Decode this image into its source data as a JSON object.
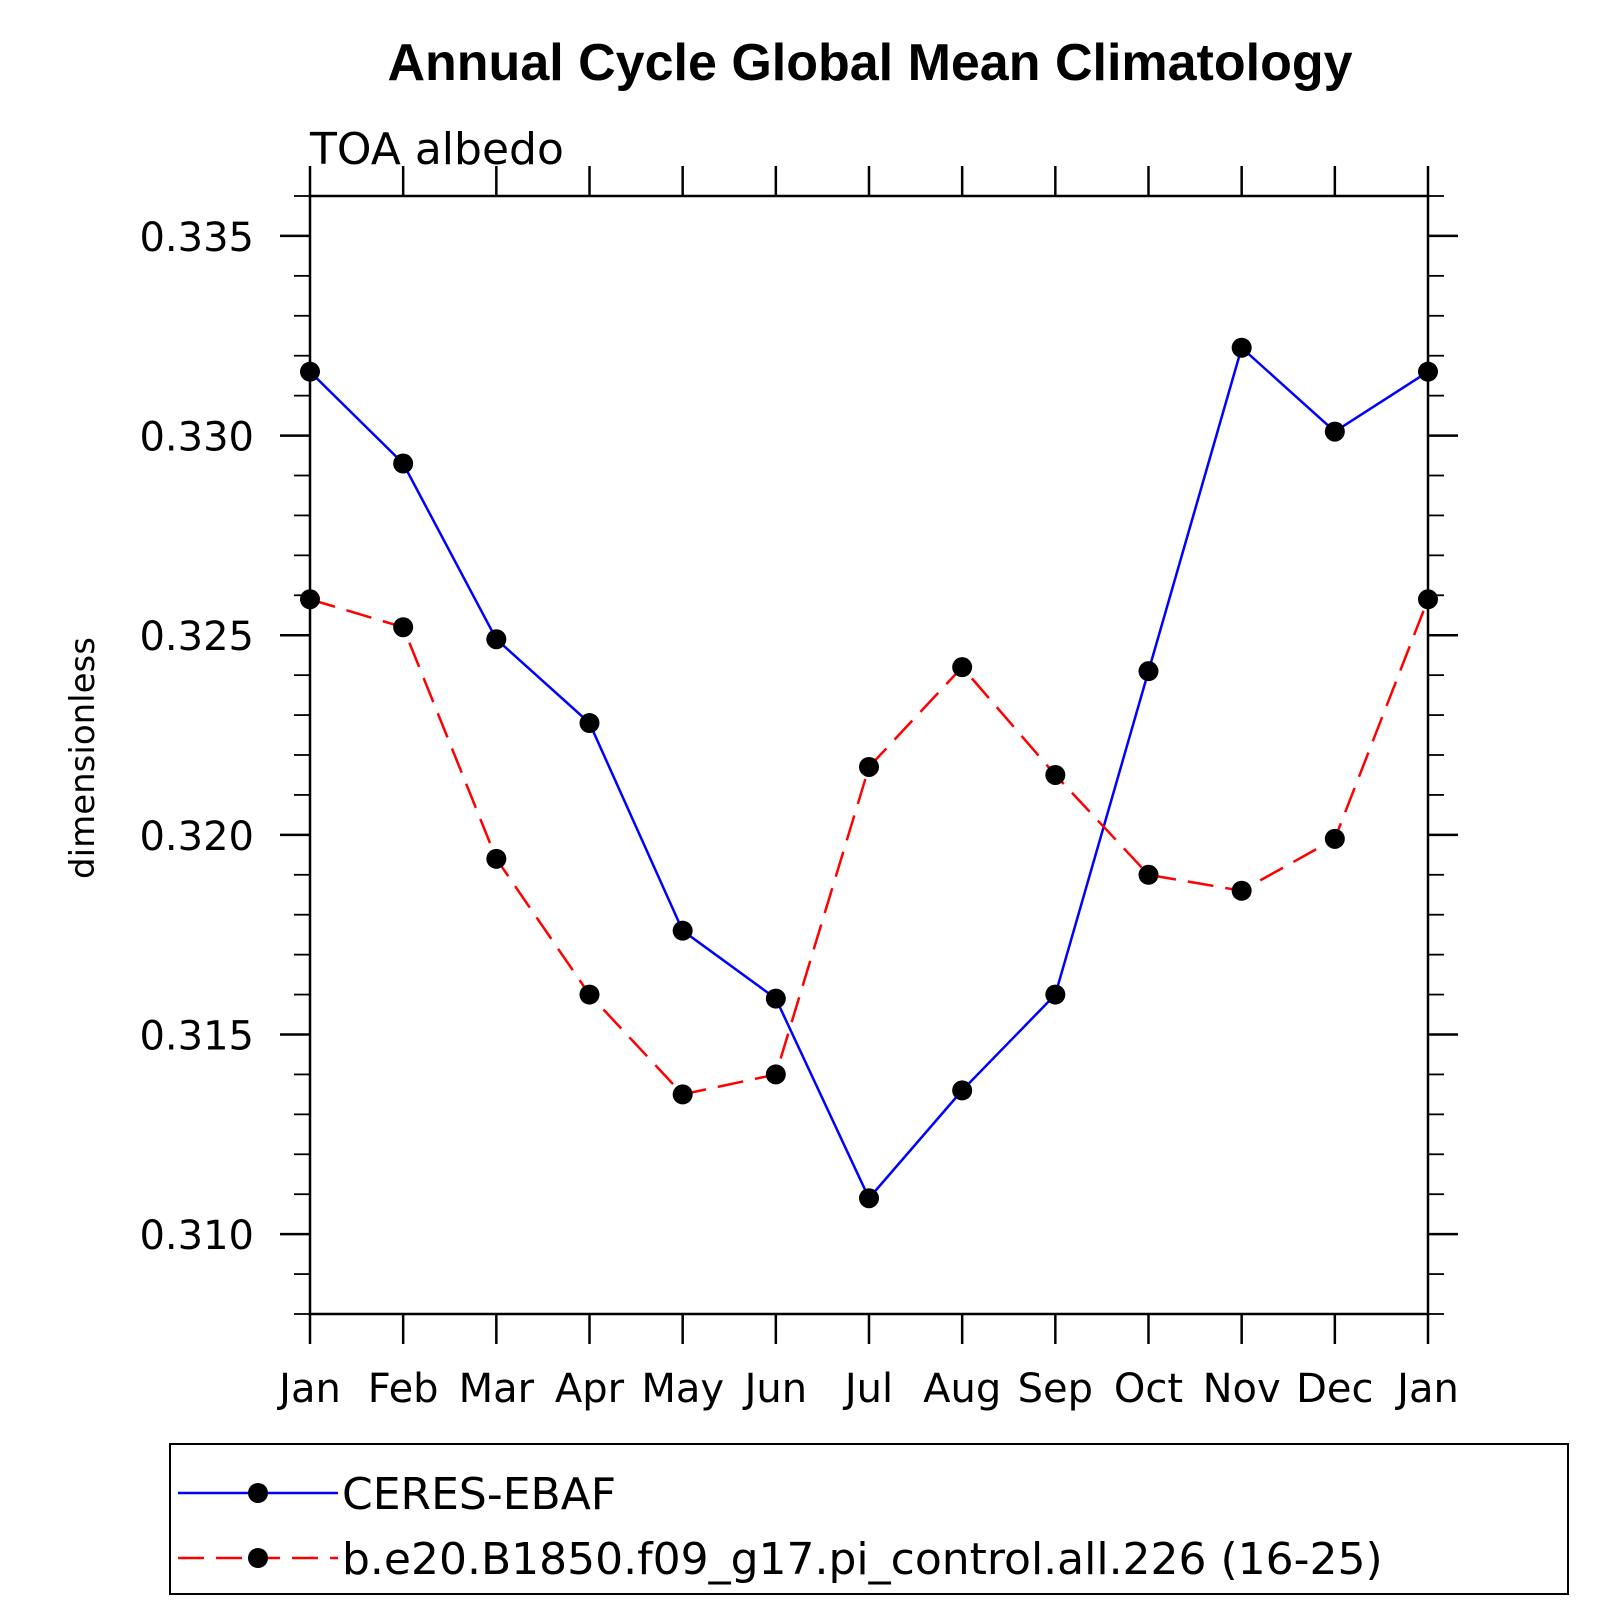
{
  "chart_data": {
    "type": "line",
    "title": "Annual Cycle Global Mean Climatology",
    "subtitle": "TOA albedo",
    "ylabel": "dimensionless",
    "xlabel": "",
    "categories": [
      "Jan",
      "Feb",
      "Mar",
      "Apr",
      "May",
      "Jun",
      "Jul",
      "Aug",
      "Sep",
      "Oct",
      "Nov",
      "Dec",
      "Jan"
    ],
    "ylim": [
      0.308,
      0.336
    ],
    "yticks": [
      0.31,
      0.315,
      0.32,
      0.325,
      0.33,
      0.335
    ],
    "ytick_labels": [
      "0.310",
      "0.315",
      "0.320",
      "0.325",
      "0.330",
      "0.335"
    ],
    "series": [
      {
        "name": "CERES-EBAF",
        "color": "#0000ff",
        "dash": "solid",
        "values": [
          0.3316,
          0.3293,
          0.3249,
          0.3228,
          0.3176,
          0.3159,
          0.3109,
          0.3136,
          0.316,
          0.3241,
          0.3322,
          0.3301,
          0.3316
        ]
      },
      {
        "name": "b.e20.B1850.f09_g17.pi_control.all.226 (16-25)",
        "color": "#ff0000",
        "dash": "dashed",
        "values": [
          0.3259,
          0.3252,
          0.3194,
          0.316,
          0.3135,
          0.314,
          0.3217,
          0.3242,
          0.3215,
          0.319,
          0.3186,
          0.3199,
          0.3259
        ]
      }
    ],
    "grid": false,
    "legend_position": "bottom"
  }
}
